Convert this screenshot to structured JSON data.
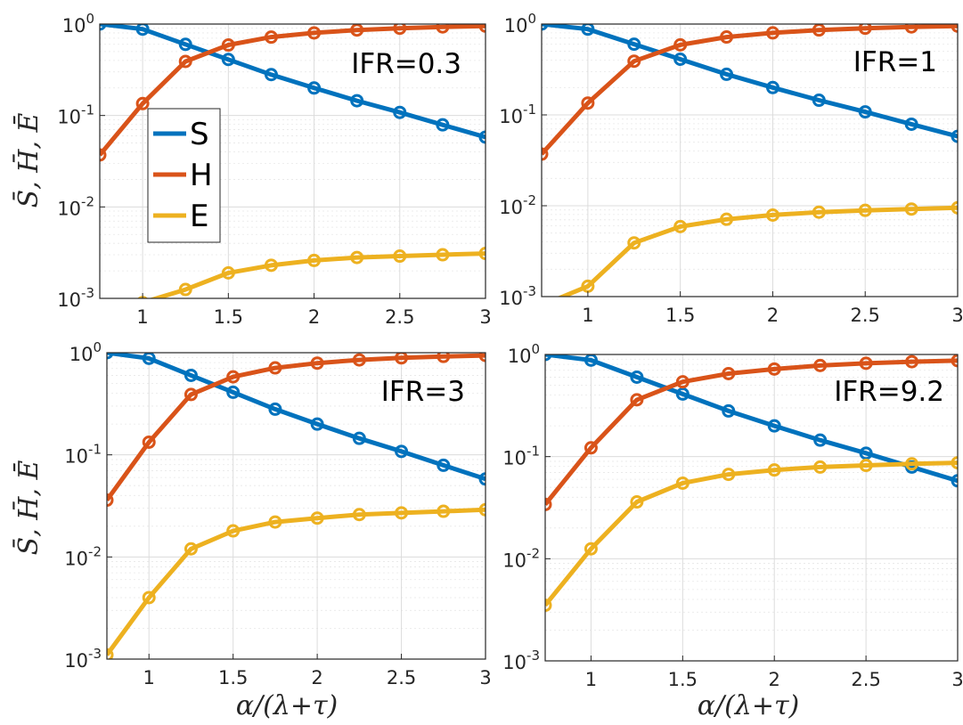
{
  "figure": {
    "ylabel": "S̄, H̄, Ē",
    "xlabel": "α/(λ+τ)"
  },
  "colors": {
    "S": "#0072BD",
    "H": "#D95319",
    "E": "#EDB120"
  },
  "legend": {
    "entries": [
      {
        "name": "S",
        "color": "#0072BD"
      },
      {
        "name": "H",
        "color": "#D95319"
      },
      {
        "name": "E",
        "color": "#EDB120"
      }
    ]
  },
  "chart_data": [
    {
      "type": "line",
      "annotation": "IFR=0.3",
      "yscale": "log",
      "xlim": [
        0.75,
        3
      ],
      "ylim": [
        0.001,
        1
      ],
      "xticks": [
        "1",
        "1.5",
        "2",
        "2.5",
        "3"
      ],
      "yticks": [
        "10",
        "10",
        "10",
        "10"
      ],
      "ytick_exponents": [
        "0",
        "-1",
        "-2",
        "-3"
      ],
      "x": [
        0.75,
        1,
        1.25,
        1.5,
        1.75,
        2,
        2.25,
        2.5,
        2.75,
        3
      ],
      "series": [
        {
          "name": "S",
          "values": [
            1.0,
            0.88,
            0.6,
            0.41,
            0.28,
            0.2,
            0.145,
            0.108,
            0.079,
            0.058
          ]
        },
        {
          "name": "H",
          "values": [
            0.037,
            0.135,
            0.39,
            0.59,
            0.72,
            0.8,
            0.86,
            0.9,
            0.93,
            0.95
          ]
        },
        {
          "name": "E",
          "values": [
            0.0007,
            0.0009,
            0.00125,
            0.0019,
            0.0023,
            0.0026,
            0.0028,
            0.0029,
            0.003,
            0.0031
          ]
        }
      ]
    },
    {
      "type": "line",
      "annotation": "IFR=1",
      "yscale": "log",
      "xlim": [
        0.75,
        3
      ],
      "ylim": [
        0.001,
        1
      ],
      "xticks": [
        "1",
        "1.5",
        "2",
        "2.5",
        "3"
      ],
      "yticks": [
        "10",
        "10",
        "10",
        "10"
      ],
      "ytick_exponents": [
        "0",
        "-1",
        "-2",
        "-3"
      ],
      "x": [
        0.75,
        1,
        1.25,
        1.5,
        1.75,
        2,
        2.25,
        2.5,
        2.75,
        3
      ],
      "series": [
        {
          "name": "S",
          "values": [
            1.0,
            0.88,
            0.6,
            0.41,
            0.28,
            0.2,
            0.145,
            0.108,
            0.079,
            0.058
          ]
        },
        {
          "name": "H",
          "values": [
            0.037,
            0.135,
            0.39,
            0.59,
            0.72,
            0.8,
            0.86,
            0.9,
            0.93,
            0.95
          ]
        },
        {
          "name": "E",
          "values": [
            0.0008,
            0.0013,
            0.0039,
            0.0059,
            0.0071,
            0.0079,
            0.0085,
            0.0089,
            0.0092,
            0.0095
          ]
        }
      ]
    },
    {
      "type": "line",
      "annotation": "IFR=3",
      "yscale": "log",
      "xlim": [
        0.75,
        3
      ],
      "ylim": [
        0.001,
        1
      ],
      "xticks": [
        "1",
        "1.5",
        "2",
        "2.5",
        "3"
      ],
      "yticks": [
        "10",
        "10",
        "10",
        "10"
      ],
      "ytick_exponents": [
        "0",
        "-1",
        "-2",
        "-3"
      ],
      "x": [
        0.75,
        1,
        1.25,
        1.5,
        1.75,
        2,
        2.25,
        2.5,
        2.75,
        3
      ],
      "series": [
        {
          "name": "S",
          "values": [
            1.0,
            0.88,
            0.6,
            0.41,
            0.28,
            0.2,
            0.145,
            0.108,
            0.079,
            0.058
          ]
        },
        {
          "name": "H",
          "values": [
            0.036,
            0.133,
            0.39,
            0.58,
            0.71,
            0.79,
            0.85,
            0.89,
            0.92,
            0.94
          ]
        },
        {
          "name": "E",
          "values": [
            0.0011,
            0.004,
            0.012,
            0.018,
            0.022,
            0.024,
            0.026,
            0.027,
            0.028,
            0.029
          ]
        }
      ]
    },
    {
      "type": "line",
      "annotation": "IFR=9.2",
      "yscale": "log",
      "xlim": [
        0.75,
        3
      ],
      "ylim": [
        0.001,
        1
      ],
      "xticks": [
        "1",
        "1.5",
        "2",
        "2.5",
        "3"
      ],
      "yticks": [
        "10",
        "10",
        "10",
        "10"
      ],
      "ytick_exponents": [
        "0",
        "-1",
        "-2",
        "-3"
      ],
      "x": [
        0.75,
        1,
        1.25,
        1.5,
        1.75,
        2,
        2.25,
        2.5,
        2.75,
        3
      ],
      "series": [
        {
          "name": "S",
          "values": [
            1.0,
            0.88,
            0.6,
            0.41,
            0.28,
            0.2,
            0.145,
            0.108,
            0.079,
            0.058
          ]
        },
        {
          "name": "H",
          "values": [
            0.034,
            0.122,
            0.36,
            0.54,
            0.65,
            0.72,
            0.78,
            0.82,
            0.85,
            0.87
          ]
        },
        {
          "name": "E",
          "values": [
            0.0035,
            0.0125,
            0.036,
            0.055,
            0.067,
            0.074,
            0.079,
            0.082,
            0.085,
            0.087
          ]
        }
      ]
    }
  ]
}
